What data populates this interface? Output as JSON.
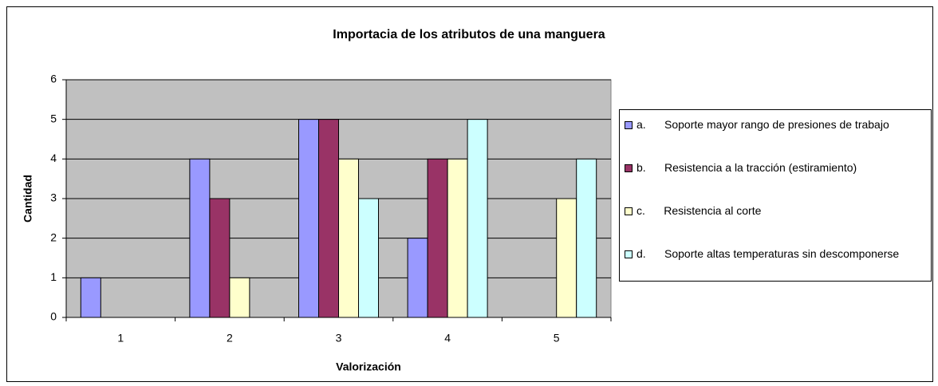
{
  "chart_data": {
    "type": "bar",
    "title": "Importacia de los atributos de una manguera",
    "xlabel": "Valorización",
    "ylabel": "Cantidad",
    "categories": [
      "1",
      "2",
      "3",
      "4",
      "5"
    ],
    "series": [
      {
        "name": "a.      Soporte mayor rango de presiones de trabajo",
        "color": "#9999FF",
        "values": [
          1,
          4,
          5,
          2,
          0
        ]
      },
      {
        "name": "b.      Resistencia a la tracción (estiramiento)",
        "color": "#993366",
        "values": [
          0,
          3,
          5,
          4,
          0
        ]
      },
      {
        "name": "c.      Resistencia al corte",
        "color": "#FFFFCC",
        "values": [
          0,
          1,
          4,
          4,
          3
        ]
      },
      {
        "name": "d.      Soporte altas temperaturas sin descomponerse",
        "color": "#CCFFFF",
        "values": [
          0,
          0,
          3,
          5,
          4
        ]
      }
    ],
    "ylim": [
      0,
      6
    ],
    "yticks": [
      0,
      1,
      2,
      3,
      4,
      5,
      6
    ],
    "grid": true,
    "legend": "right"
  }
}
